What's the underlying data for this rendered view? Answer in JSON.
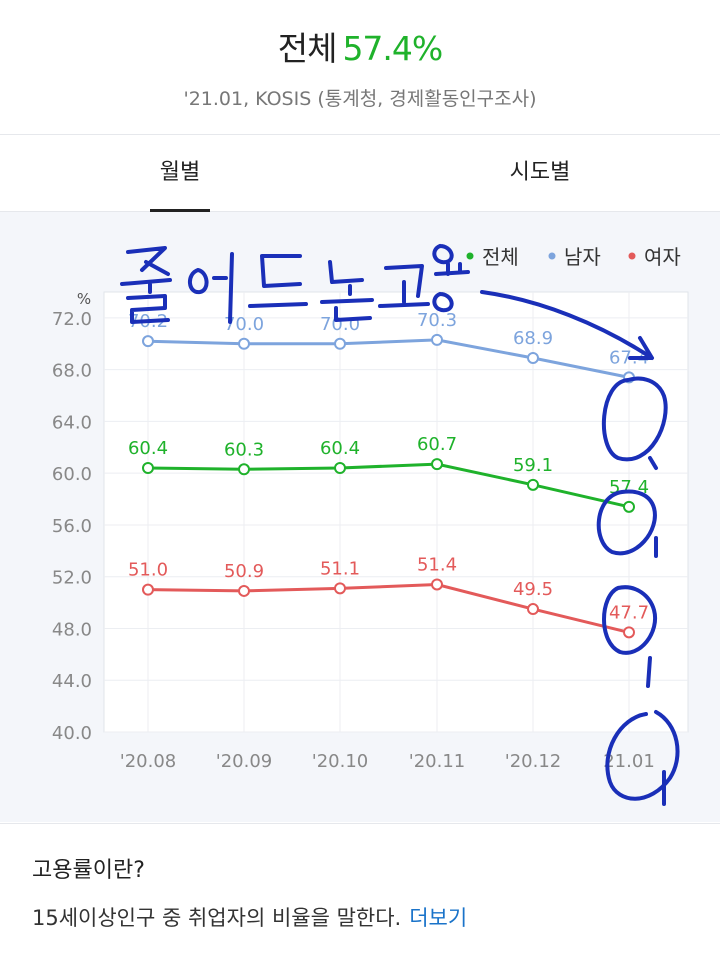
{
  "header": {
    "title": "전체",
    "value": "57.4%",
    "source": "'21.01, KOSIS (통계청, 경제활동인구조사)"
  },
  "tabs": [
    {
      "label": "월별",
      "active": true
    },
    {
      "label": "시도별",
      "active": false
    }
  ],
  "colors": {
    "total": "#1fb22b",
    "male": "#7da4dd",
    "female": "#e35a5a"
  },
  "chart_data": {
    "type": "line",
    "ylabel": "%",
    "ylim": [
      40,
      74
    ],
    "yticks": [
      "40.0",
      "44.0",
      "48.0",
      "52.0",
      "56.0",
      "60.0",
      "64.0",
      "68.0",
      "72.0"
    ],
    "categories": [
      "'20.08",
      "'20.09",
      "'20.10",
      "'20.11",
      "'20.12",
      "21.01"
    ],
    "legend_position": "top-right",
    "series": [
      {
        "name": "전체",
        "color": "#1fb22b",
        "values": [
          60.4,
          60.3,
          60.4,
          60.7,
          59.1,
          57.4
        ],
        "labels": [
          "60.4",
          "60.3",
          "60.4",
          "60.7",
          "59.1",
          "57.4"
        ]
      },
      {
        "name": "남자",
        "color": "#7da4dd",
        "values": [
          70.2,
          70.0,
          70.0,
          70.3,
          68.9,
          67.4
        ],
        "labels": [
          "70.2",
          "70.0",
          "70.0",
          "70.3",
          "68.9",
          "67.4"
        ]
      },
      {
        "name": "여자",
        "color": "#e35a5a",
        "values": [
          51.0,
          50.9,
          51.1,
          51.4,
          49.5,
          47.7
        ],
        "labels": [
          "51.0",
          "50.9",
          "51.1",
          "51.4",
          "49.5",
          "47.7"
        ]
      }
    ]
  },
  "info": {
    "title": "고용률이란?",
    "desc": "15세이상인구 중 취업자의 비율을 말한다.",
    "more": "더보기"
  }
}
